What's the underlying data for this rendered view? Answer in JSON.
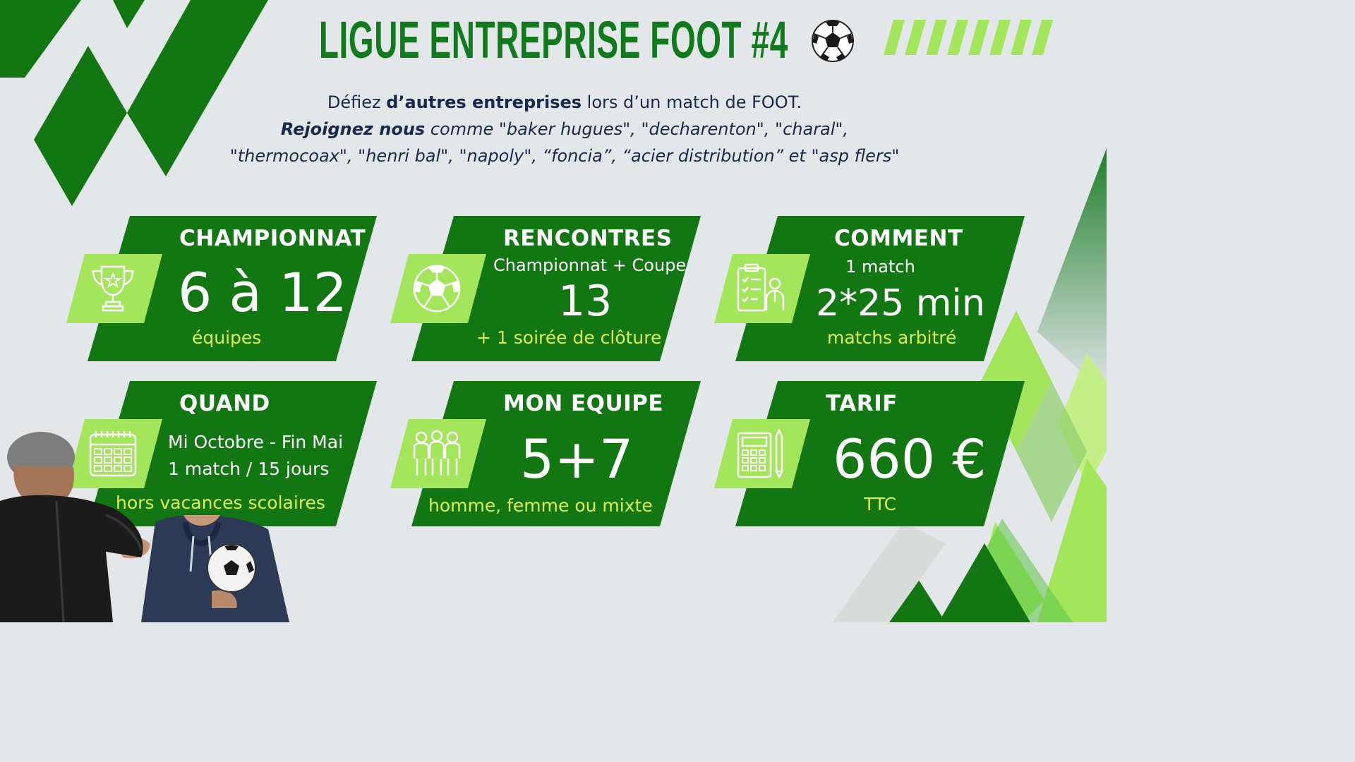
{
  "title": "LIGUE ENTREPRISE FOOT #4",
  "intro": {
    "line1_pre": "Défiez ",
    "line1_bold": "d’autres entreprises",
    "line1_post": " lors d’un match de FOOT.",
    "line2_bold": "Rejoignez nous",
    "line2_rest": " comme \"baker hugues\", \"decharenton\", \"charal\",",
    "line3": "\"thermocoax\", \"henri bal\", \"napoly\", “foncia”, “acier distribution” et \"asp flers\""
  },
  "cards": {
    "championnat": {
      "title": "CHAMPIONNAT",
      "value": "6 à 12",
      "note": "équipes",
      "icon": "trophy-icon"
    },
    "rencontres": {
      "title": "RENCONTRES",
      "sub": "Championnat + Coupe",
      "value": "13",
      "note": "+ 1 soirée de clôture",
      "icon": "soccer-ball-icon"
    },
    "comment": {
      "title": "COMMENT",
      "sub": "1 match",
      "value": "2*25 min",
      "note": "matchs arbitré",
      "icon": "clipboard-referee-icon"
    },
    "quand": {
      "title": "QUAND",
      "line1": "Mi Octobre - Fin Mai",
      "line2": "1 match / 15 jours",
      "note": "hors vacances scolaires",
      "icon": "calendar-icon"
    },
    "equipe": {
      "title": "MON EQUIPE",
      "value": "5+7",
      "note": "homme, femme ou mixte",
      "icon": "team-icon"
    },
    "tarif": {
      "title": "TARIF",
      "value": "660 €",
      "note": "TTC",
      "icon": "calculator-icon"
    }
  },
  "colors": {
    "dark_green": "#127712",
    "title_green": "#117a1c",
    "light_green": "#a3e65c",
    "accent_yellow": "#dff04e",
    "text_navy": "#17294f",
    "background": "#e4e7ea"
  }
}
